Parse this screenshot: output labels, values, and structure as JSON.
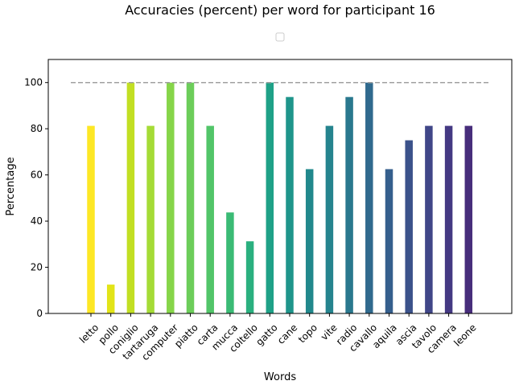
{
  "chart_data": {
    "type": "bar",
    "title": "Accuracies (percent) per word for participant 16",
    "xlabel": "Words",
    "ylabel": "Percentage",
    "ylim": [
      0,
      110
    ],
    "yticks": [
      0,
      20,
      40,
      60,
      80,
      100
    ],
    "grid": false,
    "legend": "top-center, single empty entry",
    "reference_line": {
      "value": 100,
      "style": "dashed",
      "color": "#a0a0a0"
    },
    "categories": [
      "letto",
      "pollo",
      "coniglio",
      "tartaruga",
      "computer",
      "piatto",
      "carta",
      "mucca",
      "coltello",
      "gatto",
      "cane",
      "topo",
      "vite",
      "radio",
      "cavallo",
      "aquila",
      "ascia",
      "tavolo",
      "camera",
      "leone"
    ],
    "values": [
      81.25,
      12.5,
      100,
      81.25,
      100,
      100,
      81.25,
      43.75,
      31.25,
      100,
      93.75,
      62.5,
      81.25,
      93.75,
      100,
      62.5,
      75,
      81.25,
      81.25,
      81.25
    ],
    "colors": [
      "#fde725",
      "#e2e418",
      "#c2df23",
      "#a5db36",
      "#86d549",
      "#6ccd5a",
      "#52c569",
      "#3bbb75",
      "#2ab07f",
      "#1fa187",
      "#1f958b",
      "#21888c",
      "#25848e",
      "#2a788e",
      "#306a8e",
      "#355f8d",
      "#3b528b",
      "#404688",
      "#443983",
      "#472d7b"
    ]
  }
}
